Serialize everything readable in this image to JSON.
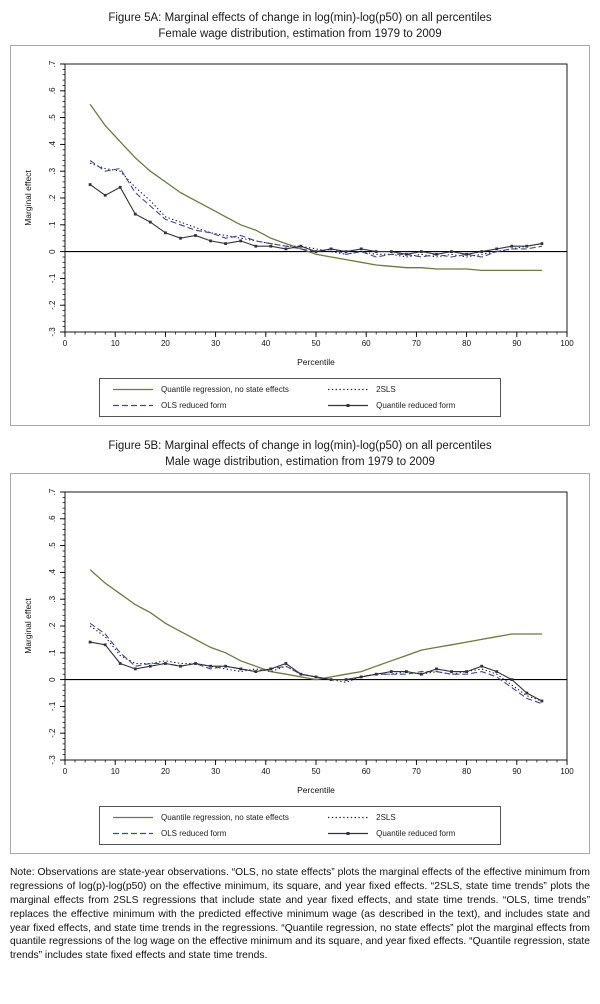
{
  "note": "Note: Observations are state-year observations. “OLS, no state effects” plots the marginal effects of the effective minimum from regressions of log(p)-log(p50) on the effective minimum, its square, and year fixed effects. “2SLS, state time trends” plots the marginal effects from 2SLS regressions that include state and year fixed effects, and state time trends. “OLS, time trends” replaces the effective minimum with the predicted effective minimum wage (as described in the text), and includes state and year fixed effects, and state time trends in the regressions. “Quantile regression, no state effects” plot the marginal effects from quantile regressions of the log wage on the effective minimum and its square, and year fixed effects. “Quantile regression, state trends” includes state fixed effects and state time trends.",
  "figures": [
    {
      "title_line1": "Figure 5A: Marginal effects of change in log(min)-log(p50) on all percentiles",
      "title_line2": "Female wage distribution, estimation from 1979 to 2009",
      "chart_data": {
        "type": "line",
        "title": "Figure 5A",
        "xlabel": "Percentile",
        "ylabel": "Marginal effect",
        "xlim": [
          0,
          100
        ],
        "ylim": [
          -0.3,
          0.7
        ],
        "xticks": [
          0,
          10,
          20,
          30,
          40,
          50,
          60,
          70,
          80,
          90,
          100
        ],
        "ytick_values": [
          0.7,
          0.6,
          0.5,
          0.4,
          0.3,
          0.2,
          0.1,
          0,
          -0.1,
          -0.2,
          -0.3
        ],
        "ytick_labels": [
          ".7",
          ".6",
          ".5",
          ".4",
          ".3",
          ".2",
          ".1",
          "0",
          "-.1",
          "-.2",
          "-.3"
        ],
        "zero_line": true,
        "grid": false,
        "legend_position": "bottom-box",
        "x": [
          5,
          8,
          11,
          14,
          17,
          20,
          23,
          26,
          29,
          32,
          35,
          38,
          41,
          44,
          47,
          50,
          53,
          56,
          59,
          62,
          65,
          68,
          71,
          74,
          77,
          80,
          83,
          86,
          89,
          92,
          95
        ],
        "series": [
          {
            "name": "Quantile regression, no state effects",
            "style": "solid",
            "color": "#6a7b3d",
            "values": [
              0.55,
              0.47,
              0.41,
              0.35,
              0.3,
              0.26,
              0.22,
              0.19,
              0.16,
              0.13,
              0.1,
              0.08,
              0.05,
              0.03,
              0.01,
              -0.01,
              -0.02,
              -0.03,
              -0.04,
              -0.05,
              -0.055,
              -0.06,
              -0.06,
              -0.065,
              -0.065,
              -0.065,
              -0.07,
              -0.07,
              -0.07,
              -0.07,
              -0.07
            ]
          },
          {
            "name": "2SLS",
            "style": "dotted",
            "color": "#242447",
            "values": [
              0.33,
              0.31,
              0.3,
              0.24,
              0.19,
              0.13,
              0.11,
              0.09,
              0.07,
              0.06,
              0.05,
              0.04,
              0.03,
              0.02,
              0.02,
              0.01,
              0.0,
              -0.01,
              0.0,
              -0.01,
              -0.01,
              -0.02,
              -0.01,
              -0.02,
              -0.01,
              -0.02,
              -0.01,
              0.0,
              0.01,
              0.02,
              0.03
            ]
          },
          {
            "name": "OLS reduced form",
            "style": "dashed",
            "color": "#3a4a9f",
            "values": [
              0.34,
              0.3,
              0.31,
              0.22,
              0.17,
              0.12,
              0.1,
              0.08,
              0.07,
              0.05,
              0.06,
              0.04,
              0.03,
              0.02,
              0.01,
              0.0,
              0.01,
              -0.01,
              0.0,
              -0.02,
              -0.01,
              -0.01,
              -0.02,
              -0.01,
              -0.02,
              -0.01,
              -0.02,
              0.0,
              0.01,
              0.01,
              0.02
            ]
          },
          {
            "name": "Quantile reduced form",
            "style": "solid-marker",
            "color": "#33333d",
            "values": [
              0.25,
              0.21,
              0.24,
              0.14,
              0.11,
              0.07,
              0.05,
              0.06,
              0.04,
              0.03,
              0.04,
              0.02,
              0.02,
              0.01,
              0.02,
              0.0,
              0.01,
              0.0,
              0.01,
              0.0,
              0.0,
              -0.01,
              0.0,
              -0.01,
              0.0,
              -0.01,
              0.0,
              0.01,
              0.02,
              0.02,
              0.03
            ]
          }
        ]
      }
    },
    {
      "title_line1": "Figure 5B: Marginal effects of change in log(min)-log(p50) on all percentiles",
      "title_line2": "Male wage distribution, estimation from 1979 to 2009",
      "chart_data": {
        "type": "line",
        "title": "Figure 5B",
        "xlabel": "Percentile",
        "ylabel": "Marginal effect",
        "xlim": [
          0,
          100
        ],
        "ylim": [
          -0.3,
          0.7
        ],
        "xticks": [
          0,
          10,
          20,
          30,
          40,
          50,
          60,
          70,
          80,
          90,
          100
        ],
        "ytick_values": [
          0.7,
          0.6,
          0.5,
          0.4,
          0.3,
          0.2,
          0.1,
          0,
          -0.1,
          -0.2,
          -0.3
        ],
        "ytick_labels": [
          ".7",
          ".6",
          ".5",
          ".4",
          ".3",
          ".2",
          ".1",
          "0",
          "-.1",
          "-.2",
          "-.3"
        ],
        "zero_line": true,
        "grid": false,
        "legend_position": "bottom-box",
        "x": [
          5,
          8,
          11,
          14,
          17,
          20,
          23,
          26,
          29,
          32,
          35,
          38,
          41,
          44,
          47,
          50,
          53,
          56,
          59,
          62,
          65,
          68,
          71,
          74,
          77,
          80,
          83,
          86,
          89,
          92,
          95
        ],
        "series": [
          {
            "name": "Quantile regression, no state effects",
            "style": "solid",
            "color": "#6a7b3d",
            "values": [
              0.41,
              0.36,
              0.32,
              0.28,
              0.25,
              0.21,
              0.18,
              0.15,
              0.12,
              0.1,
              0.07,
              0.05,
              0.03,
              0.02,
              0.01,
              0.0,
              0.01,
              0.02,
              0.03,
              0.05,
              0.07,
              0.09,
              0.11,
              0.12,
              0.13,
              0.14,
              0.15,
              0.16,
              0.17,
              0.17,
              0.17
            ]
          },
          {
            "name": "2SLS",
            "style": "dotted",
            "color": "#242447",
            "values": [
              0.2,
              0.16,
              0.09,
              0.06,
              0.06,
              0.07,
              0.06,
              0.06,
              0.05,
              0.04,
              0.03,
              0.04,
              0.03,
              0.05,
              0.02,
              0.01,
              0.0,
              -0.01,
              0.01,
              0.02,
              0.02,
              0.03,
              0.02,
              0.03,
              0.02,
              0.03,
              0.04,
              0.02,
              -0.02,
              -0.06,
              -0.08
            ]
          },
          {
            "name": "OLS reduced form",
            "style": "dashed",
            "color": "#3a4a9f",
            "values": [
              0.21,
              0.17,
              0.1,
              0.05,
              0.06,
              0.06,
              0.05,
              0.06,
              0.04,
              0.05,
              0.04,
              0.03,
              0.04,
              0.05,
              0.02,
              0.01,
              0.0,
              0.0,
              0.01,
              0.02,
              0.02,
              0.02,
              0.03,
              0.03,
              0.02,
              0.02,
              0.03,
              0.01,
              -0.03,
              -0.07,
              -0.09
            ]
          },
          {
            "name": "Quantile reduced form",
            "style": "solid-marker",
            "color": "#33333d",
            "values": [
              0.14,
              0.13,
              0.06,
              0.04,
              0.05,
              0.06,
              0.05,
              0.06,
              0.05,
              0.05,
              0.04,
              0.03,
              0.04,
              0.06,
              0.02,
              0.01,
              0.0,
              0.0,
              0.01,
              0.02,
              0.03,
              0.03,
              0.02,
              0.04,
              0.03,
              0.03,
              0.05,
              0.03,
              0.0,
              -0.05,
              -0.08
            ]
          }
        ]
      }
    }
  ]
}
